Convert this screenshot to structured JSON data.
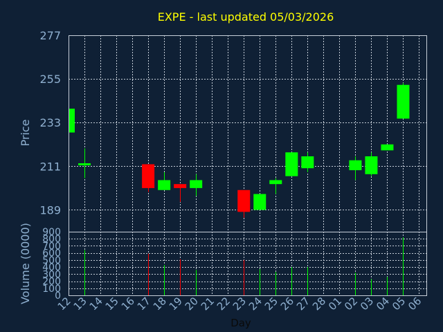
{
  "colors": {
    "background": "#0f2035",
    "plot_border": "#c8d0da",
    "grid": "#c8d0da",
    "up": "#00ff00",
    "down": "#ff0000",
    "title": "#ffff00",
    "axis_text": "#8fb0d0",
    "xlabel_text": "#0a0a0a"
  },
  "chart_data": {
    "type": "candlestick",
    "title": "EXPE - last updated 05/03/2026",
    "xlabel": "Day",
    "ylabel_price": "Price",
    "ylabel_volume": "Volume (0000)",
    "price_ylim": [
      178,
      277
    ],
    "price_ticks": [
      "277",
      "255",
      "233",
      "211",
      "189"
    ],
    "volume_ylim": [
      0,
      900
    ],
    "volume_ticks": [
      "900",
      "800",
      "700",
      "600",
      "500",
      "400",
      "300",
      "200",
      "100",
      "0"
    ],
    "x_ticks": [
      "12",
      "13",
      "14",
      "15",
      "16",
      "17",
      "18",
      "19",
      "20",
      "21",
      "22",
      "23",
      "24",
      "25",
      "26",
      "27",
      "28",
      "01",
      "02",
      "03",
      "04",
      "05",
      "06"
    ],
    "candles": [
      {
        "day": "12",
        "open": 228,
        "close": 240,
        "high": 240,
        "low": 228,
        "volume": 0
      },
      {
        "day": "13",
        "open": 211.5,
        "close": 212.5,
        "high": 220,
        "low": 205,
        "volume": 640
      },
      {
        "day": "17",
        "open": 212,
        "close": 200,
        "high": 212,
        "low": 198,
        "volume": 590
      },
      {
        "day": "18",
        "open": 199,
        "close": 204,
        "high": 208,
        "low": 199,
        "volume": 430
      },
      {
        "day": "19",
        "open": 202,
        "close": 200,
        "high": 202,
        "low": 193,
        "volume": 510
      },
      {
        "day": "20",
        "open": 200,
        "close": 204,
        "high": 207,
        "low": 196,
        "volume": 360
      },
      {
        "day": "23",
        "open": 199,
        "close": 188,
        "high": 199,
        "low": 185,
        "volume": 500
      },
      {
        "day": "24",
        "open": 189,
        "close": 197,
        "high": 197,
        "low": 189,
        "volume": 370
      },
      {
        "day": "25",
        "open": 202,
        "close": 204,
        "high": 205,
        "low": 197,
        "volume": 330
      },
      {
        "day": "26",
        "open": 206,
        "close": 218,
        "high": 218,
        "low": 206,
        "volume": 400
      },
      {
        "day": "27",
        "open": 210,
        "close": 216,
        "high": 218,
        "low": 208,
        "volume": 400
      },
      {
        "day": "02",
        "open": 209,
        "close": 214,
        "high": 216,
        "low": 204,
        "volume": 320
      },
      {
        "day": "03",
        "open": 207,
        "close": 216,
        "high": 218,
        "low": 206,
        "volume": 230
      },
      {
        "day": "04",
        "open": 219,
        "close": 222,
        "high": 222,
        "low": 219,
        "volume": 260
      },
      {
        "day": "05",
        "open": 235,
        "close": 252,
        "high": 253,
        "low": 235,
        "volume": 820
      }
    ]
  }
}
